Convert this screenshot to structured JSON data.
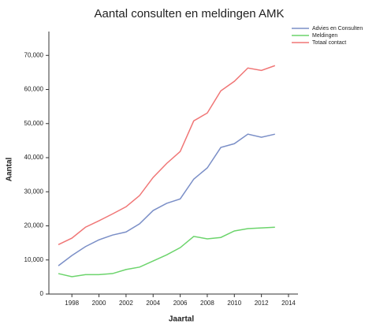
{
  "chart_data": {
    "type": "line",
    "title": "Aantal consulten en meldingen AMK",
    "xlabel": "Jaartal",
    "ylabel": "Aantal",
    "x": [
      1997,
      1998,
      1999,
      2000,
      2001,
      2002,
      2003,
      2004,
      2005,
      2006,
      2007,
      2008,
      2009,
      2010,
      2011,
      2012,
      2013
    ],
    "series": [
      {
        "name": "Advies en Consulten",
        "color": "#7b8fc7",
        "values": [
          8300,
          11300,
          13900,
          15900,
          17300,
          18200,
          20600,
          24500,
          26600,
          27900,
          33700,
          37000,
          43000,
          44100,
          46900,
          46000,
          46900
        ]
      },
      {
        "name": "Meldingen",
        "color": "#6cd46c",
        "values": [
          6000,
          5100,
          5700,
          5700,
          6000,
          7200,
          7900,
          9700,
          11500,
          13600,
          16900,
          16200,
          16600,
          18500,
          19200,
          19400,
          19600
        ]
      },
      {
        "name": "Totaal contact",
        "color": "#f07676",
        "values": [
          14500,
          16400,
          19600,
          21500,
          23500,
          25600,
          28900,
          34200,
          38300,
          41800,
          50800,
          53100,
          59600,
          62400,
          66300,
          65600,
          67000
        ]
      }
    ],
    "xlim": [
      1996.3,
      2014.7
    ],
    "xticks": [
      1998,
      2000,
      2002,
      2004,
      2006,
      2008,
      2010,
      2012,
      2014
    ],
    "ylim": [
      0,
      77000
    ],
    "yticks": [
      0,
      {
        "value": 10000,
        "label": "10,000"
      },
      {
        "value": 20000,
        "label": "20,000"
      },
      {
        "value": 30000,
        "label": "30,000"
      },
      {
        "value": 40000,
        "label": "40,000"
      },
      {
        "value": 50000,
        "label": "50,000"
      },
      {
        "value": 60000,
        "label": "60,000"
      },
      {
        "value": 70000,
        "label": "70,000"
      }
    ],
    "legend": "upper right"
  }
}
